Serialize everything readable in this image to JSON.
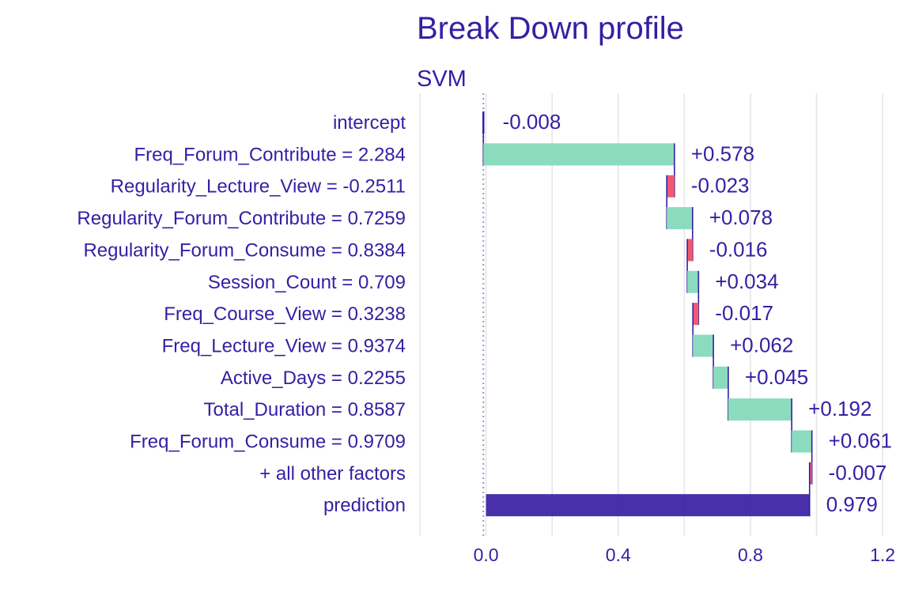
{
  "chart_data": {
    "type": "waterfall",
    "title": "Break Down profile",
    "subtitle": "SVM",
    "xlabel": "",
    "ylabel": "",
    "xlim": [
      -0.2,
      1.25
    ],
    "xticks": [
      0.0,
      0.4,
      0.8,
      1.2
    ],
    "xtick_labels": [
      "0.0",
      "0.4",
      "0.8",
      "1.2"
    ],
    "grid": true,
    "baseline": -0.008,
    "colors": {
      "positive": "#8bdcbe",
      "negative": "#f05a71",
      "prediction": "#371ea3",
      "text": "#371ea3",
      "grid": "#e6e6e6",
      "baseline": "#9c94d4"
    },
    "rows": [
      {
        "variable": "intercept",
        "contribution": -0.008,
        "label": "-0.008",
        "kind": "intercept"
      },
      {
        "variable": "Freq_Forum_Contribute = 2.284",
        "contribution": 0.578,
        "label": "+0.578",
        "kind": "positive"
      },
      {
        "variable": "Regularity_Lecture_View = -0.2511",
        "contribution": -0.023,
        "label": "-0.023",
        "kind": "negative"
      },
      {
        "variable": "Regularity_Forum_Contribute = 0.7259",
        "contribution": 0.078,
        "label": "+0.078",
        "kind": "positive"
      },
      {
        "variable": "Regularity_Forum_Consume = 0.8384",
        "contribution": -0.016,
        "label": "-0.016",
        "kind": "negative"
      },
      {
        "variable": "Session_Count = 0.709",
        "contribution": 0.034,
        "label": "+0.034",
        "kind": "positive"
      },
      {
        "variable": "Freq_Course_View = 0.3238",
        "contribution": -0.017,
        "label": "-0.017",
        "kind": "negative"
      },
      {
        "variable": "Freq_Lecture_View = 0.9374",
        "contribution": 0.062,
        "label": "+0.062",
        "kind": "positive"
      },
      {
        "variable": "Active_Days = 0.2255",
        "contribution": 0.045,
        "label": "+0.045",
        "kind": "positive"
      },
      {
        "variable": "Total_Duration = 0.8587",
        "contribution": 0.192,
        "label": "+0.192",
        "kind": "positive"
      },
      {
        "variable": "Freq_Forum_Consume = 0.9709",
        "contribution": 0.061,
        "label": "+0.061",
        "kind": "positive"
      },
      {
        "variable": "+ all other factors",
        "contribution": -0.007,
        "label": "-0.007",
        "kind": "negative"
      },
      {
        "variable": "prediction",
        "contribution": 0.979,
        "label": "0.979",
        "kind": "prediction"
      }
    ]
  }
}
